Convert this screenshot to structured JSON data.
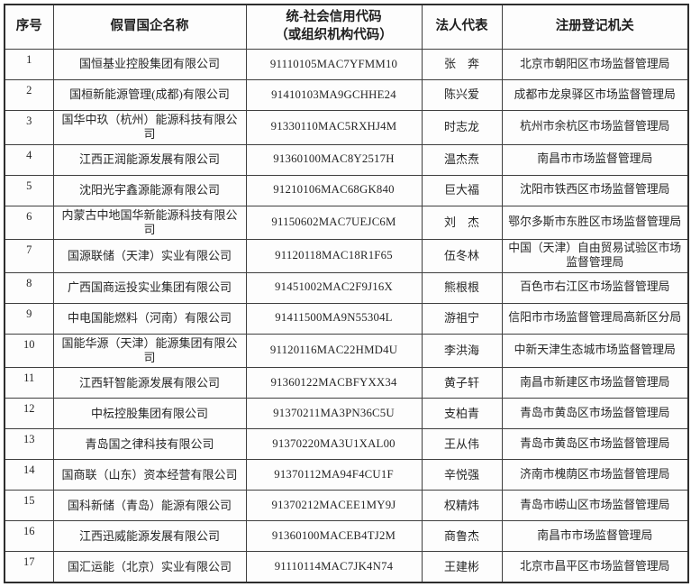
{
  "table": {
    "headers": {
      "seq": "序号",
      "name": "假冒国企名称",
      "code": "统-社会信用代码\n（或组织机构代码）",
      "rep": "法人代表",
      "authority": "注册登记机关"
    },
    "rows": [
      [
        "1",
        "国恒基业控股集团有限公司",
        "91110105MAC7YFMM10",
        "张　奔",
        "北京市朝阳区市场监督管理局"
      ],
      [
        "2",
        "国桓新能源管理(成都)有限公司",
        "91410103MA9GCHHE24",
        "陈兴爱",
        "成都市龙泉驿区市场监督管理局"
      ],
      [
        "3",
        "国华中玖（杭州）能源科技有限公司",
        "91330110MAC5RXHJ4M",
        "时志龙",
        "杭州市余杭区市场监督管理局"
      ],
      [
        "4",
        "江西正润能源发展有限公司",
        "91360100MAC8Y2517H",
        "温杰焘",
        "南昌市市场监督管理局"
      ],
      [
        "5",
        "沈阳光宇鑫源能源有限公司",
        "91210106MAC68GK840",
        "巨大福",
        "沈阳市铁西区市场监督管理局"
      ],
      [
        "6",
        "内蒙古中地国华新能源科技有限公司",
        "91150602MAC7UEJC6M",
        "刘　杰",
        "鄂尔多斯市东胜区市场监督管理局"
      ],
      [
        "7",
        "国源联储（天津）实业有限公司",
        "91120118MAC18R1F65",
        "伍冬林",
        "中国（天津）自由贸易试验区市场监督管理局"
      ],
      [
        "8",
        "广西国商运投实业集团有限公司",
        "91451002MAC2F9J16X",
        "熊根根",
        "百色市右江区市场监督管理局"
      ],
      [
        "9",
        "中电国能燃料（河南）有限公司",
        "91411500MA9N55304L",
        "游祖宁",
        "信阳市市场监督管理局高新区分局"
      ],
      [
        "10",
        "国能华源（天津）能源集团有限公司",
        "91120116MAC22HMD4U",
        "李洪海",
        "中新天津生态城市场监督管理局"
      ],
      [
        "11",
        "江西轩智能源发展有限公司",
        "91360122MACBFYXX34",
        "黄子轩",
        "南昌市新建区市场监督管理局"
      ],
      [
        "12",
        "中枟控股集团有限公司",
        "91370211MA3PN36C5U",
        "支柏青",
        "青岛市黄岛区市场监督管理局"
      ],
      [
        "13",
        "青岛国之律科技有限公司",
        "91370220MA3U1XAL00",
        "王从伟",
        "青岛市黄岛区市场监督管理局"
      ],
      [
        "14",
        "国商联（山东）资本经营有限公司",
        "91370112MA94F4CU1F",
        "辛悦强",
        "济南市槐荫区市场监督管理局"
      ],
      [
        "15",
        "国科新储（青岛）能源有限公司",
        "91370212MACEE1MY9J",
        "权精炜",
        "青岛市崂山区市场监督管理局"
      ],
      [
        "16",
        "江西迅威能源发展有限公司",
        "91360100MACEB4TJ2M",
        "商鲁杰",
        "南昌市市场监督管理局"
      ],
      [
        "17",
        "国汇运能（北京）实业有限公司",
        "91110114MAC7JK4N74",
        "王建彬",
        "北京市昌平区市场监督管理局"
      ]
    ]
  }
}
